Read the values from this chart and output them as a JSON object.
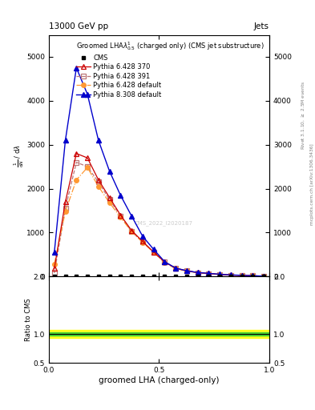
{
  "title_top": "13000 GeV pp",
  "title_right": "Jets",
  "plot_title": "Groomed LHA$\\lambda^{1}_{0.5}$ (charged only) (CMS jet substructure)",
  "xlabel": "groomed LHA (charged-only)",
  "ylabel_main": "$\\frac{1}{\\mathrm{d}N}$ / $\\mathrm{d}\\lambda$",
  "ylabel_ratio": "Ratio to CMS",
  "right_label_top": "Rivet 3.1.10, $\\geq$ 2.5M events",
  "right_label_bottom": "mcplots.cern.ch [arXiv:1306.3436]",
  "watermark": "CMS_2022_I2020187",
  "x_vals": [
    0.025,
    0.075,
    0.125,
    0.175,
    0.225,
    0.275,
    0.325,
    0.375,
    0.425,
    0.475,
    0.525,
    0.575,
    0.625,
    0.675,
    0.725,
    0.775,
    0.825,
    0.875,
    0.925,
    0.975
  ],
  "cms_y": [
    0,
    0,
    0,
    0,
    0,
    0,
    0,
    0,
    0,
    0,
    0,
    0,
    0,
    0,
    0,
    0,
    0,
    0,
    0,
    0
  ],
  "cms_color": "#000000",
  "cms_marker": "s",
  "p6_370_y": [
    180,
    1700,
    2800,
    2700,
    2200,
    1800,
    1400,
    1050,
    800,
    560,
    330,
    190,
    130,
    90,
    70,
    50,
    35,
    25,
    18,
    8
  ],
  "p6_370_color": "#cc0000",
  "p6_370_label": "Pythia 6.428 370",
  "p6_370_ls": "-",
  "p6_370_marker": "^",
  "p6_391_y": [
    80,
    1550,
    2600,
    2500,
    2150,
    1750,
    1380,
    1030,
    790,
    555,
    325,
    185,
    128,
    88,
    68,
    48,
    33,
    24,
    17,
    7
  ],
  "p6_391_color": "#bb7777",
  "p6_391_label": "Pythia 6.428 391",
  "p6_391_ls": "--",
  "p6_391_marker": "s",
  "p6_def_y": [
    280,
    1480,
    2200,
    2480,
    2050,
    1680,
    1350,
    1020,
    780,
    550,
    320,
    182,
    125,
    86,
    66,
    47,
    32,
    23,
    16,
    6
  ],
  "p6_def_color": "#ff9933",
  "p6_def_label": "Pythia 6.428 default",
  "p6_def_ls": "-.",
  "p6_def_marker": "o",
  "p8_def_y": [
    550,
    3100,
    4750,
    4150,
    3100,
    2400,
    1850,
    1380,
    920,
    620,
    340,
    192,
    132,
    92,
    72,
    52,
    37,
    27,
    19,
    9
  ],
  "p8_def_color": "#0000cc",
  "p8_def_label": "Pythia 8.308 default",
  "p8_def_ls": "-",
  "p8_def_marker": "^",
  "ylim_main": [
    0,
    5500
  ],
  "yticks_main": [
    0,
    1000,
    2000,
    3000,
    4000,
    5000
  ],
  "ylim_ratio": [
    0.5,
    2.0
  ],
  "yticks_ratio": [
    0.5,
    1.0,
    2.0
  ],
  "xlim": [
    0,
    1.0
  ],
  "xticks": [
    0,
    0.5,
    1.0
  ],
  "green_band_lo": 0.97,
  "green_band_hi": 1.03,
  "yellow_band_lo": 0.93,
  "yellow_band_hi": 1.07
}
